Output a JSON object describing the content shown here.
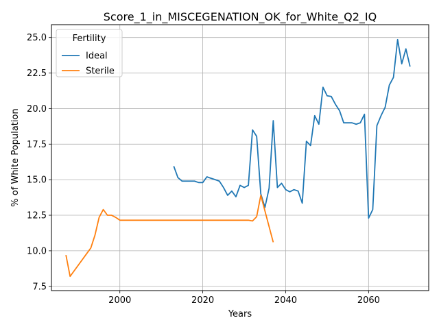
{
  "chart_data": {
    "type": "line",
    "title": "Score_1_in_MISCEGENATION_OK_for_White_Q2_IQ",
    "xlabel": "Years",
    "ylabel": "% of White Population",
    "xlim": [
      1983.5,
      2074.5
    ],
    "ylim": [
      7.2,
      25.9
    ],
    "xticks": [
      2000,
      2020,
      2040,
      2060
    ],
    "yticks": [
      7.5,
      10.0,
      12.5,
      15.0,
      17.5,
      20.0,
      22.5,
      25.0
    ],
    "grid": true,
    "legend": {
      "title": "Fertility",
      "placement": "upper-left"
    },
    "series": [
      {
        "name": "Ideal",
        "color": "#1f77b4",
        "points": [
          [
            2013,
            15.95
          ],
          [
            2014,
            15.15
          ],
          [
            2015,
            14.9
          ],
          [
            2016,
            14.9
          ],
          [
            2017,
            14.9
          ],
          [
            2018,
            14.9
          ],
          [
            2019,
            14.8
          ],
          [
            2020,
            14.8
          ],
          [
            2021,
            15.2
          ],
          [
            2022,
            15.1
          ],
          [
            2023,
            15.0
          ],
          [
            2024,
            14.9
          ],
          [
            2025,
            14.45
          ],
          [
            2026,
            13.9
          ],
          [
            2027,
            14.2
          ],
          [
            2028,
            13.8
          ],
          [
            2029,
            14.6
          ],
          [
            2030,
            14.45
          ],
          [
            2031,
            14.6
          ],
          [
            2032,
            18.5
          ],
          [
            2033,
            18.05
          ],
          [
            2034,
            14.0
          ],
          [
            2035,
            13.05
          ],
          [
            2036,
            14.4
          ],
          [
            2037,
            19.15
          ],
          [
            2038,
            14.45
          ],
          [
            2039,
            14.75
          ],
          [
            2040,
            14.3
          ],
          [
            2041,
            14.15
          ],
          [
            2042,
            14.3
          ],
          [
            2043,
            14.2
          ],
          [
            2044,
            13.35
          ],
          [
            2045,
            17.7
          ],
          [
            2046,
            17.4
          ],
          [
            2047,
            19.5
          ],
          [
            2048,
            18.9
          ],
          [
            2049,
            21.5
          ],
          [
            2050,
            20.9
          ],
          [
            2051,
            20.85
          ],
          [
            2052,
            20.3
          ],
          [
            2053,
            19.85
          ],
          [
            2054,
            19.0
          ],
          [
            2055,
            19.0
          ],
          [
            2056,
            19.0
          ],
          [
            2057,
            18.9
          ],
          [
            2058,
            19.0
          ],
          [
            2059,
            19.6
          ],
          [
            2060,
            12.3
          ],
          [
            2061,
            12.9
          ],
          [
            2062,
            18.8
          ],
          [
            2063,
            19.5
          ],
          [
            2064,
            20.1
          ],
          [
            2065,
            21.65
          ],
          [
            2066,
            22.2
          ],
          [
            2067,
            24.85
          ],
          [
            2068,
            23.15
          ],
          [
            2069,
            24.2
          ],
          [
            2070,
            22.95
          ]
        ]
      },
      {
        "name": "Sterile",
        "color": "#ff7f0e",
        "points": [
          [
            1987,
            9.7
          ],
          [
            1988,
            8.2
          ],
          [
            1993,
            10.2
          ],
          [
            1994,
            11.1
          ],
          [
            1995,
            12.35
          ],
          [
            1996,
            12.9
          ],
          [
            1997,
            12.5
          ],
          [
            1998,
            12.5
          ],
          [
            1999,
            12.35
          ],
          [
            2000,
            12.15
          ],
          [
            2031,
            12.15
          ],
          [
            2032,
            12.1
          ],
          [
            2033,
            12.4
          ],
          [
            2034,
            13.9
          ],
          [
            2037,
            10.6
          ]
        ]
      }
    ]
  }
}
